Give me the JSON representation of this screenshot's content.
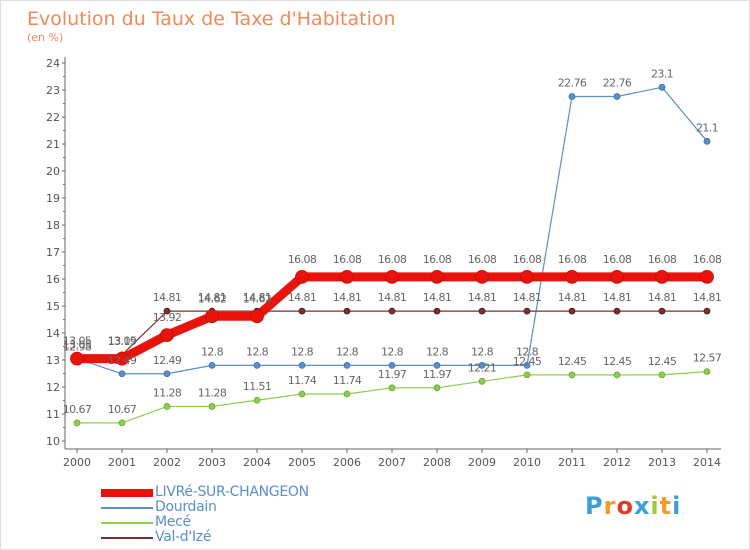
{
  "header": {
    "title": "Evolution du Taux de Taxe d'Habitation",
    "subtitle": "(en %)"
  },
  "logo": {
    "text": "Proxiti",
    "colors": [
      "#3aa0d8",
      "#f39a2c",
      "#e03c2c",
      "#3aa0d8",
      "#9cc93c",
      "#f39a2c",
      "#3aa0d8"
    ]
  },
  "chart_data": {
    "type": "line",
    "title": "Evolution du Taux de Taxe d'Habitation",
    "subtitle": "(en %)",
    "xlabel": "",
    "ylabel": "",
    "x": [
      "2000",
      "2001",
      "2002",
      "2003",
      "2004",
      "2005",
      "2006",
      "2007",
      "2008",
      "2009",
      "2010",
      "2011",
      "2012",
      "2013",
      "2014"
    ],
    "ylim": [
      10,
      24
    ],
    "yticks": [
      "10",
      "11",
      "12",
      "13",
      "14",
      "15",
      "16",
      "17",
      "18",
      "19",
      "20",
      "21",
      "22",
      "23",
      "24"
    ],
    "grid": false,
    "legend": "bottom-left",
    "series": [
      {
        "name": "LIVRé-SUR-CHANGEON",
        "color": "#e8140c",
        "values": [
          13.05,
          13.05,
          13.92,
          14.62,
          14.62,
          16.08,
          16.08,
          16.08,
          16.08,
          16.08,
          16.08,
          16.08,
          16.08,
          16.08,
          16.08
        ],
        "labels": [
          "13.05",
          "13.05",
          "13.92",
          "14.62",
          "14.62",
          "16.08",
          "16.08",
          "16.08",
          "16.08",
          "16.08",
          "16.08",
          "16.08",
          "16.08",
          "16.08",
          "16.08"
        ]
      },
      {
        "name": "Dourdain",
        "color": "#5a8fc8",
        "values": [
          13.05,
          12.49,
          12.49,
          12.8,
          12.8,
          12.8,
          12.8,
          12.8,
          12.8,
          12.8,
          12.8,
          22.76,
          22.76,
          23.1,
          21.1
        ],
        "labels": [
          "13.05",
          "12.49",
          "12.49",
          "12.8",
          "12.8",
          "12.8",
          "12.8",
          "12.8",
          "12.8",
          "12.8",
          "12.8",
          "22.76",
          "22.76",
          "23.1",
          "21.1"
        ]
      },
      {
        "name": "Mecé",
        "color": "#8ccd4e",
        "values": [
          10.67,
          10.67,
          11.28,
          11.28,
          11.51,
          11.74,
          11.74,
          11.97,
          11.97,
          12.21,
          12.45,
          12.45,
          12.45,
          12.45,
          12.57
        ],
        "labels": [
          "10.67",
          "10.67",
          "11.28",
          "11.28",
          "11.51",
          "11.74",
          "11.74",
          "11.97",
          "11.97",
          "12.21",
          "12.45",
          "12.45",
          "12.45",
          "12.45",
          "12.57"
        ]
      },
      {
        "name": "Val-d'Izé",
        "color": "#7a3030",
        "values": [
          12.98,
          13.19,
          14.81,
          14.81,
          14.81,
          14.81,
          14.81,
          14.81,
          14.81,
          14.81,
          14.81,
          14.81,
          14.81,
          14.81,
          14.81
        ],
        "labels": [
          "12.98",
          "13.19",
          "14.81",
          "14.81",
          "14.81",
          "14.81",
          "14.81",
          "14.81",
          "14.81",
          "14.81",
          "14.81",
          "14.81",
          "14.81",
          "14.81",
          "14.81"
        ]
      }
    ]
  }
}
